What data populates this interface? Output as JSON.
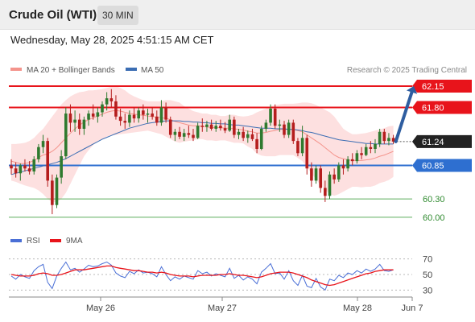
{
  "header": {
    "instrument": "Crude Oil (WTI)",
    "timeframe": "30 MIN",
    "datetime": "Wednesday, May 28, 2025 4:51:15 AM CET"
  },
  "colors": {
    "ma20": "#f4948c",
    "bollinger_fill": "#fde0e0",
    "ma50": "#3b6db3",
    "resistance": "#e8141b",
    "pivot": "#2e6fd0",
    "support": "#5cae5c",
    "candle_up": "#2f7a2f",
    "candle_down": "#b51d1d",
    "arrow": "#2e5da0",
    "current_bg": "#222222",
    "rsi": "#4a6fd6",
    "rsi_ma": "#e8141b"
  },
  "chart_data": [
    {
      "type": "candlestick",
      "title": "Crude Oil (WTI)",
      "ylim": [
        59.8,
        62.4
      ],
      "legend": {
        "placement": "top-left",
        "items": [
          {
            "label": "MA 20 + Bollinger Bands",
            "color": "#f4948c"
          },
          {
            "label": "MA 50",
            "color": "#3b6db3"
          }
        ]
      },
      "credit": "Research © 2025 Trading Central",
      "x_ticks": [
        "May 26",
        "May 27",
        "May 28",
        "Jun 7"
      ],
      "levels": [
        {
          "value": 62.15,
          "label": "62.15",
          "kind": "resistance"
        },
        {
          "value": 61.8,
          "label": "61.80",
          "kind": "resistance"
        },
        {
          "value": 60.85,
          "label": "60.85",
          "kind": "pivot"
        },
        {
          "value": 60.3,
          "label": "60.30",
          "kind": "support"
        },
        {
          "value": 60.0,
          "label": "60.00",
          "kind": "support"
        }
      ],
      "current": {
        "value": 61.24,
        "label": "61.24"
      },
      "arrow": {
        "from": 61.24,
        "to": 62.15
      },
      "candles": [
        [
          60.85,
          60.95,
          60.7,
          60.8
        ],
        [
          60.8,
          60.9,
          60.65,
          60.72
        ],
        [
          60.72,
          60.88,
          60.6,
          60.85
        ],
        [
          60.85,
          60.95,
          60.75,
          60.8
        ],
        [
          60.8,
          60.92,
          60.7,
          60.75
        ],
        [
          60.75,
          61.0,
          60.7,
          60.95
        ],
        [
          60.95,
          61.2,
          60.9,
          61.15
        ],
        [
          61.15,
          61.35,
          61.05,
          61.25
        ],
        [
          61.25,
          61.3,
          60.5,
          60.6
        ],
        [
          60.6,
          60.7,
          60.05,
          60.2
        ],
        [
          60.2,
          60.7,
          60.15,
          60.65
        ],
        [
          60.65,
          61.1,
          60.55,
          61.0
        ],
        [
          61.0,
          61.8,
          60.95,
          61.7
        ],
        [
          61.7,
          61.85,
          61.4,
          61.55
        ],
        [
          61.55,
          61.75,
          61.4,
          61.6
        ],
        [
          61.6,
          61.7,
          61.35,
          61.45
        ],
        [
          61.45,
          61.65,
          61.35,
          61.6
        ],
        [
          61.6,
          61.75,
          61.5,
          61.7
        ],
        [
          61.7,
          61.85,
          61.6,
          61.65
        ],
        [
          61.65,
          61.8,
          61.55,
          61.72
        ],
        [
          61.72,
          61.9,
          61.65,
          61.85
        ],
        [
          61.85,
          62.05,
          61.75,
          61.95
        ],
        [
          61.95,
          62.1,
          61.8,
          61.9
        ],
        [
          61.9,
          62.0,
          61.6,
          61.65
        ],
        [
          61.65,
          61.78,
          61.5,
          61.58
        ],
        [
          61.58,
          61.7,
          61.45,
          61.55
        ],
        [
          61.55,
          61.75,
          61.48,
          61.68
        ],
        [
          61.68,
          61.8,
          61.55,
          61.62
        ],
        [
          61.62,
          61.8,
          61.55,
          61.75
        ],
        [
          61.75,
          61.85,
          61.6,
          61.68
        ],
        [
          61.68,
          61.78,
          61.55,
          61.7
        ],
        [
          61.7,
          61.8,
          61.6,
          61.65
        ],
        [
          61.65,
          61.75,
          61.5,
          61.55
        ],
        [
          61.55,
          61.92,
          61.5,
          61.8
        ],
        [
          61.8,
          61.88,
          61.55,
          61.6
        ],
        [
          61.6,
          61.65,
          61.3,
          61.35
        ],
        [
          61.35,
          61.45,
          61.25,
          61.4
        ],
        [
          61.4,
          61.48,
          61.28,
          61.32
        ],
        [
          61.32,
          61.45,
          61.25,
          61.38
        ],
        [
          61.38,
          61.5,
          61.3,
          61.35
        ],
        [
          61.35,
          61.45,
          61.25,
          61.3
        ],
        [
          61.3,
          61.55,
          61.28,
          61.5
        ],
        [
          61.5,
          61.62,
          61.4,
          61.48
        ],
        [
          61.48,
          61.58,
          61.4,
          61.52
        ],
        [
          61.52,
          61.6,
          61.42,
          61.45
        ],
        [
          61.45,
          61.58,
          61.4,
          61.5
        ],
        [
          61.5,
          61.6,
          61.42,
          61.46
        ],
        [
          61.46,
          61.56,
          61.38,
          61.42
        ],
        [
          61.42,
          61.68,
          61.4,
          61.6
        ],
        [
          61.6,
          61.65,
          61.3,
          61.35
        ],
        [
          61.35,
          61.45,
          61.28,
          61.4
        ],
        [
          61.4,
          61.48,
          61.25,
          61.3
        ],
        [
          61.3,
          61.42,
          61.22,
          61.36
        ],
        [
          61.36,
          61.45,
          61.25,
          61.28
        ],
        [
          61.28,
          61.38,
          61.05,
          61.12
        ],
        [
          61.12,
          61.5,
          61.1,
          61.45
        ],
        [
          61.45,
          61.6,
          61.4,
          61.55
        ],
        [
          61.55,
          61.85,
          61.5,
          61.78
        ],
        [
          61.78,
          61.85,
          61.45,
          61.5
        ],
        [
          61.5,
          61.6,
          61.4,
          61.52
        ],
        [
          61.52,
          61.58,
          61.3,
          61.35
        ],
        [
          61.35,
          61.6,
          61.3,
          61.55
        ],
        [
          61.55,
          61.6,
          61.2,
          61.25
        ],
        [
          61.25,
          61.3,
          61.0,
          61.05
        ],
        [
          61.05,
          61.5,
          61.0,
          61.3
        ],
        [
          61.3,
          61.35,
          60.7,
          60.8
        ],
        [
          60.8,
          60.9,
          60.5,
          60.6
        ],
        [
          60.6,
          60.85,
          60.55,
          60.8
        ],
        [
          60.8,
          60.85,
          60.4,
          60.48
        ],
        [
          60.48,
          60.6,
          60.25,
          60.35
        ],
        [
          60.35,
          60.75,
          60.3,
          60.7
        ],
        [
          60.7,
          60.8,
          60.55,
          60.62
        ],
        [
          60.62,
          60.9,
          60.58,
          60.85
        ],
        [
          60.85,
          60.95,
          60.7,
          60.8
        ],
        [
          60.8,
          61.0,
          60.75,
          60.95
        ],
        [
          60.95,
          61.05,
          60.85,
          60.92
        ],
        [
          60.92,
          61.1,
          60.88,
          61.05
        ],
        [
          61.05,
          61.15,
          60.95,
          61.02
        ],
        [
          61.02,
          61.2,
          61.0,
          61.15
        ],
        [
          61.15,
          61.25,
          61.05,
          61.12
        ],
        [
          61.12,
          61.28,
          61.05,
          61.2
        ],
        [
          61.2,
          61.45,
          61.15,
          61.4
        ],
        [
          61.4,
          61.45,
          61.2,
          61.25
        ],
        [
          61.25,
          61.38,
          61.18,
          61.3
        ],
        [
          61.3,
          61.35,
          61.2,
          61.24
        ]
      ],
      "ma20": [
        60.92,
        60.9,
        60.88,
        60.88,
        60.9,
        60.93,
        60.98,
        61.02,
        61.04,
        61.08,
        61.14,
        61.22,
        61.3,
        61.38,
        61.45,
        61.51,
        61.56,
        61.6,
        61.63,
        61.66,
        61.69,
        61.72,
        61.74,
        61.75,
        61.74,
        61.72,
        61.7,
        61.69,
        61.68,
        61.67,
        61.66,
        61.65,
        61.64,
        61.63,
        61.62,
        61.6,
        61.57,
        61.55,
        61.53,
        61.51,
        61.5,
        61.5,
        61.49,
        61.48,
        61.47,
        61.47,
        61.47,
        61.46,
        61.46,
        61.45,
        61.44,
        61.43,
        61.41,
        61.4,
        61.38,
        61.38,
        61.39,
        61.41,
        61.42,
        61.44,
        61.44,
        61.44,
        61.44,
        61.42,
        61.4,
        61.35,
        61.3,
        61.25,
        61.2,
        61.14,
        61.08,
        61.02,
        60.98,
        60.96,
        60.94,
        60.93,
        60.93,
        60.93,
        60.94,
        60.95,
        60.97,
        61.0,
        61.02,
        61.05,
        61.08
      ],
      "bb_upper": [
        61.2,
        61.2,
        61.21,
        61.22,
        61.25,
        61.3,
        61.38,
        61.45,
        61.55,
        61.65,
        61.75,
        61.85,
        61.92,
        61.98,
        62.02,
        62.05,
        62.06,
        62.08,
        62.08,
        62.09,
        62.1,
        62.12,
        62.14,
        62.15,
        62.12,
        62.08,
        62.02,
        61.98,
        61.95,
        61.92,
        61.9,
        61.9,
        61.9,
        61.9,
        61.92,
        61.92,
        61.9,
        61.88,
        61.82,
        61.78,
        61.74,
        61.72,
        61.7,
        61.7,
        61.68,
        61.68,
        61.66,
        61.66,
        61.68,
        61.68,
        61.66,
        61.65,
        61.66,
        61.68,
        61.72,
        61.75,
        61.78,
        61.82,
        61.84,
        61.85,
        61.86,
        61.86,
        61.86,
        61.87,
        61.88,
        61.88,
        61.87,
        61.84,
        61.8,
        61.76,
        61.72,
        61.65,
        61.55,
        61.45,
        61.4,
        61.36,
        61.36,
        61.37,
        61.38,
        61.4,
        61.42,
        61.44,
        61.46,
        61.49,
        61.5
      ],
      "bb_lower": [
        60.6,
        60.58,
        60.55,
        60.52,
        60.5,
        60.48,
        60.44,
        60.38,
        60.3,
        60.25,
        60.25,
        60.3,
        60.4,
        60.55,
        60.7,
        60.85,
        61.0,
        61.1,
        61.18,
        61.25,
        61.28,
        61.32,
        61.35,
        61.35,
        61.36,
        61.37,
        61.38,
        61.39,
        61.4,
        61.41,
        61.42,
        61.4,
        61.38,
        61.36,
        61.32,
        61.28,
        61.24,
        61.22,
        61.24,
        61.25,
        61.26,
        61.28,
        61.28,
        61.26,
        61.26,
        61.25,
        61.26,
        61.26,
        61.24,
        61.22,
        61.22,
        61.21,
        61.16,
        61.12,
        61.04,
        61.01,
        61.0,
        61.0,
        61.0,
        61.02,
        61.02,
        61.02,
        61.02,
        60.97,
        60.92,
        60.82,
        60.72,
        60.62,
        60.52,
        60.45,
        60.38,
        60.35,
        60.38,
        60.42,
        60.46,
        60.5,
        60.5,
        60.49,
        60.5,
        60.5,
        60.52,
        60.56,
        60.58,
        60.61,
        60.66
      ],
      "ma50": [
        60.7,
        60.72,
        60.74,
        60.76,
        60.78,
        60.8,
        60.82,
        60.84,
        60.86,
        60.88,
        60.9,
        60.93,
        60.96,
        61.0,
        61.04,
        61.08,
        61.12,
        61.16,
        61.2,
        61.24,
        61.28,
        61.31,
        61.34,
        61.37,
        61.4,
        61.43,
        61.46,
        61.48,
        61.5,
        61.52,
        61.54,
        61.55,
        61.56,
        61.57,
        61.58,
        61.58,
        61.58,
        61.58,
        61.57,
        61.57,
        61.56,
        61.56,
        61.55,
        61.55,
        61.54,
        61.54,
        61.53,
        61.53,
        61.52,
        61.51,
        61.51,
        61.5,
        61.49,
        61.48,
        61.47,
        61.46,
        61.46,
        61.46,
        61.45,
        61.45,
        61.45,
        61.44,
        61.44,
        61.43,
        61.42,
        61.4,
        61.39,
        61.37,
        61.35,
        61.33,
        61.31,
        61.29,
        61.27,
        61.26,
        61.25,
        61.24,
        61.23,
        61.22,
        61.21,
        61.21,
        61.2,
        61.2,
        61.2,
        61.2,
        61.2
      ]
    },
    {
      "type": "line",
      "title": "RSI",
      "ylim": [
        20,
        80
      ],
      "y_ticks": [
        70,
        50,
        30
      ],
      "legend": {
        "placement": "top-left",
        "items": [
          {
            "label": "RSI",
            "color": "#4a6fd6"
          },
          {
            "label": "9MA",
            "color": "#e8141b"
          }
        ]
      },
      "series": [
        {
          "name": "RSI",
          "values": [
            48,
            44,
            50,
            47,
            45,
            55,
            60,
            63,
            40,
            32,
            48,
            58,
            66,
            56,
            58,
            53,
            57,
            62,
            60,
            61,
            64,
            66,
            62,
            52,
            48,
            46,
            54,
            51,
            56,
            52,
            53,
            51,
            47,
            60,
            50,
            42,
            47,
            44,
            48,
            46,
            44,
            55,
            51,
            53,
            48,
            51,
            49,
            47,
            58,
            45,
            49,
            43,
            47,
            44,
            38,
            53,
            58,
            64,
            51,
            52,
            44,
            55,
            42,
            36,
            49,
            35,
            33,
            45,
            34,
            30,
            44,
            42,
            49,
            46,
            52,
            50,
            55,
            52,
            57,
            54,
            57,
            63,
            55,
            54,
            56
          ]
        },
        {
          "name": "9MA",
          "values": [
            50,
            49,
            48,
            48,
            48,
            49,
            51,
            52,
            51,
            49,
            49,
            50,
            52,
            54,
            56,
            56,
            56,
            57,
            58,
            59,
            60,
            61,
            61,
            59,
            58,
            57,
            56,
            55,
            55,
            54,
            53,
            53,
            52,
            53,
            52,
            50,
            49,
            48,
            48,
            48,
            47,
            48,
            49,
            49,
            49,
            49,
            50,
            50,
            51,
            50,
            49,
            49,
            48,
            47,
            46,
            47,
            49,
            51,
            52,
            53,
            53,
            53,
            52,
            50,
            48,
            46,
            43,
            41,
            39,
            37,
            36,
            37,
            39,
            41,
            43,
            45,
            47,
            49,
            51,
            52,
            54,
            55,
            56,
            56,
            56
          ]
        }
      ]
    }
  ]
}
